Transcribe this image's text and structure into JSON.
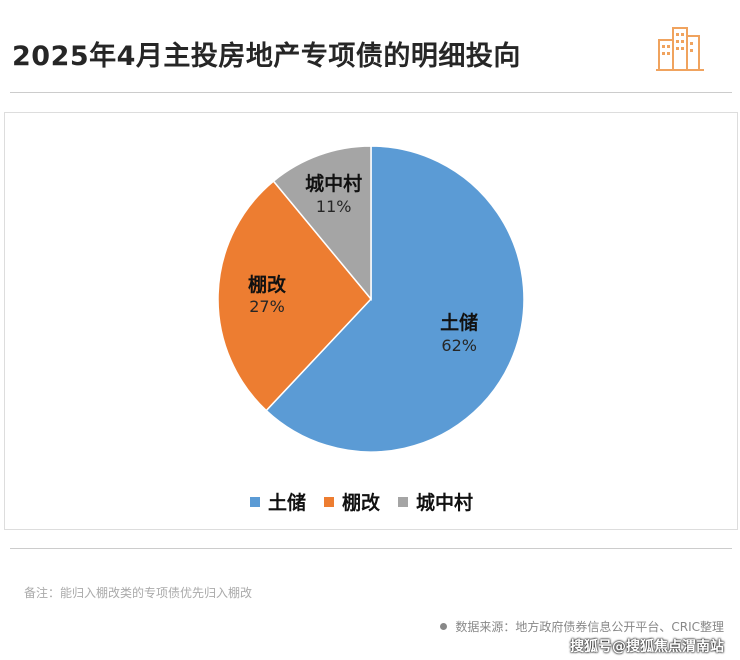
{
  "header": {
    "title": "2025年4月主投房地产专项债的明细投向"
  },
  "colors": {
    "tuchu": "#5B9BD5",
    "penggai": "#ED7D31",
    "chengzhongcun": "#A5A5A5",
    "logo_accent": "#F0A35E"
  },
  "chart_data": {
    "type": "pie",
    "title": "",
    "slices": [
      {
        "name": "土储",
        "value": 62,
        "label": "62%",
        "color": "#5B9BD5"
      },
      {
        "name": "棚改",
        "value": 27,
        "label": "27%",
        "color": "#ED7D31"
      },
      {
        "name": "城中村",
        "value": 11,
        "label": "11%",
        "color": "#A5A5A5"
      }
    ],
    "legend": {
      "position": "bottom",
      "entries": [
        "土储",
        "棚改",
        "城中村"
      ]
    }
  },
  "footer": {
    "note": "备注：能归入棚改类的专项债优先归入棚改",
    "source": "数据来源：地方政府债券信息公开平台、CRIC整理",
    "watermark": "搜狐号@搜狐焦点渭南站"
  }
}
